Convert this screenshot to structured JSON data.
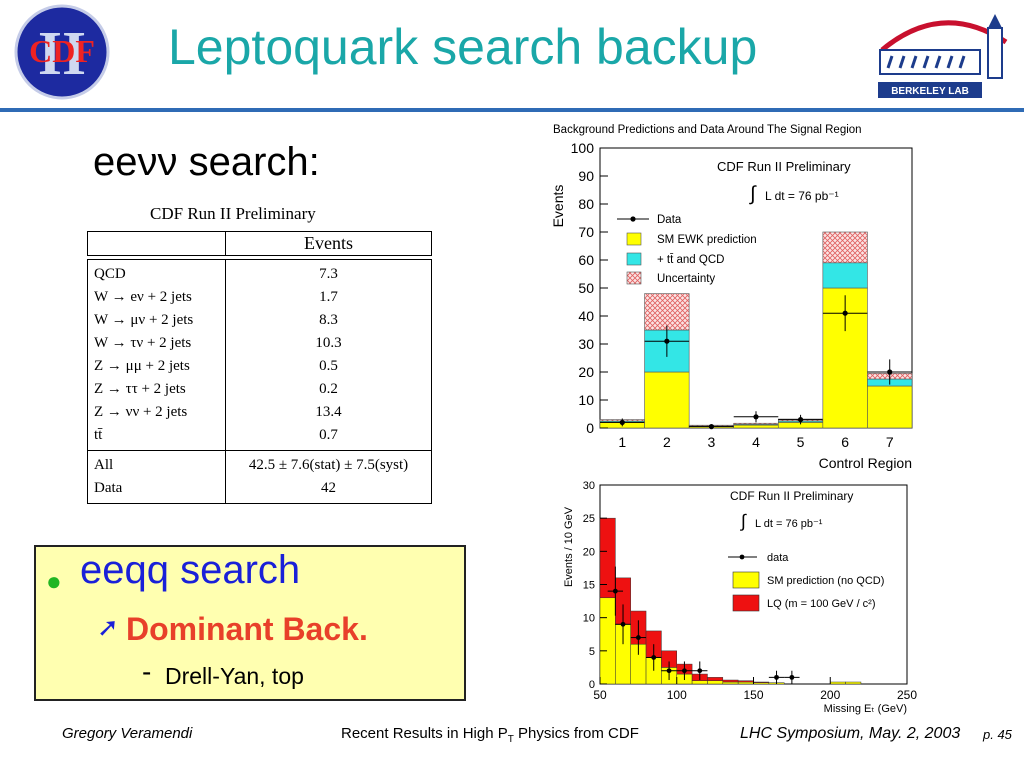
{
  "header": {
    "title": "Leptoquark search backup",
    "cdf_logo_text": "CDF",
    "cdf_logo_roman": "II",
    "lab_logo_text": "BERKELEY LAB",
    "colors": {
      "title": "#1aa7a8",
      "rule": "#2f6bb5"
    }
  },
  "left": {
    "heading": "eeνν search:",
    "table": {
      "title": "CDF Run II Preliminary",
      "column_header": "Events",
      "processes": [
        "QCD",
        "W → eν + 2 jets",
        "W → μν + 2 jets",
        "W → τν + 2 jets",
        "Z → μμ + 2 jets",
        "Z → ττ + 2 jets",
        "Z → νν + 2 jets",
        "tt̄"
      ],
      "process_values": [
        "7.3",
        "1.7",
        "8.3",
        "10.3",
        "0.5",
        "0.2",
        "13.4",
        "0.7"
      ],
      "all_label": "All",
      "all_value": "42.5 ± 7.6(stat) ± 7.5(syst)",
      "data_label": "Data",
      "data_value": "42"
    },
    "box": {
      "bullet": "eeqq search",
      "sub": "Dominant Back.",
      "dash": "-",
      "detail": "Drell-Yan, top",
      "colors": {
        "bg": "#ffffb0",
        "bullet": "#1a20d8",
        "sub": "#e8402a",
        "dot": "#21b523"
      }
    }
  },
  "chart_data": [
    {
      "type": "bar",
      "title": "Background Predictions and Data Around The Signal Region",
      "annotation_title": "CDF Run II Preliminary",
      "annotation_lumi": "L dt = 76 pb⁻¹",
      "xlabel": "Control Region",
      "ylabel": "Events",
      "categories": [
        "1",
        "2",
        "3",
        "4",
        "5",
        "6",
        "7"
      ],
      "ylim": [
        0,
        100
      ],
      "yticks": [
        0,
        10,
        20,
        30,
        40,
        50,
        60,
        70,
        80,
        90,
        100
      ],
      "series": [
        {
          "name": "SM EWK prediction",
          "color": "#ffff00",
          "values": [
            2,
            20,
            0.5,
            1,
            2,
            50,
            15
          ]
        },
        {
          "name": "+ tt̄ and QCD",
          "color": "#33e6e6",
          "values": [
            0.5,
            15,
            0.2,
            0.3,
            0.5,
            9,
            2.5
          ]
        },
        {
          "name": "Uncertainty",
          "color": "#e88080",
          "values": [
            0.5,
            13,
            0.3,
            0.4,
            0.7,
            11,
            2
          ]
        }
      ],
      "data": {
        "name": "Data",
        "values": [
          2,
          31,
          0.5,
          4,
          3,
          41,
          20
        ],
        "errors": [
          1.4,
          5.6,
          0.7,
          2,
          1.7,
          6.4,
          4.5
        ]
      },
      "legend": "top-right"
    },
    {
      "type": "bar",
      "annotation_title": "CDF Run II Preliminary",
      "annotation_lumi": "L dt = 76 pb⁻¹",
      "xlabel": "Missing Eₜ (GeV)",
      "ylabel": "Events / 10 GeV",
      "x_edges": [
        50,
        60,
        70,
        80,
        90,
        100,
        110,
        120,
        130,
        140,
        150,
        160,
        170,
        180,
        190,
        200,
        210,
        220,
        230,
        240,
        250
      ],
      "xlim": [
        50,
        250
      ],
      "xticks": [
        50,
        100,
        150,
        200,
        250
      ],
      "ylim": [
        0,
        30
      ],
      "yticks": [
        0,
        5,
        10,
        15,
        20,
        25,
        30
      ],
      "series": [
        {
          "name": "SM prediction (no QCD)",
          "color": "#ffff00",
          "values": [
            13,
            9,
            6,
            4,
            2.5,
            1.5,
            0.5,
            0.5,
            0.3,
            0.3,
            0.2,
            0.2,
            0,
            0,
            0,
            0.3,
            0.3,
            0,
            0,
            0
          ]
        },
        {
          "name": "LQ (m = 100 GeV / c²)",
          "color": "#ee1111",
          "values": [
            12,
            7,
            5,
            4,
            2.5,
            1.5,
            1,
            0.5,
            0.3,
            0.2,
            0.1,
            0,
            0,
            0,
            0,
            0,
            0,
            0,
            0,
            0
          ]
        }
      ],
      "data": {
        "name": "data",
        "x": [
          60,
          65,
          75,
          85,
          95,
          105,
          115,
          165,
          175
        ],
        "y": [
          14,
          9,
          7,
          4,
          2,
          2,
          2,
          1,
          1
        ],
        "errors": [
          3.7,
          3,
          2.6,
          2,
          1.4,
          1.4,
          1.4,
          1,
          1
        ]
      },
      "legend": "top-right"
    }
  ],
  "footer": {
    "author": "Gregory Veramendi",
    "talk": "Recent Results in High P",
    "talk_sub": "T",
    "talk_end": " Physics from CDF",
    "venue": "LHC Symposium, May. 2, 2003",
    "page": "p. 45"
  }
}
